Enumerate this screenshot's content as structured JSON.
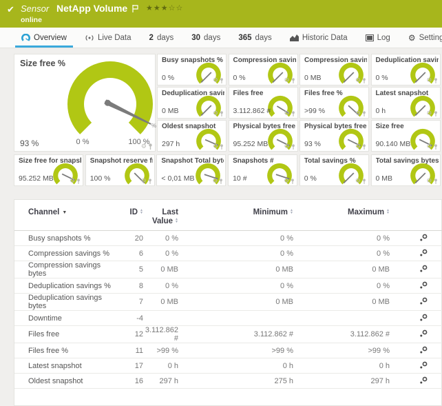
{
  "colors": {
    "brand_green": "#a7b61c",
    "gauge_green": "#b1c714",
    "tab_active_blue": "#3aa9dc"
  },
  "titlebar": {
    "check_glyph": "✔",
    "kind": "Sensor",
    "name": "NetApp Volume",
    "status": "online",
    "stars_filled": "★★★",
    "stars_empty": "☆☆"
  },
  "tabs": [
    {
      "prefix": "",
      "label": "Overview",
      "icon": "gauge-icon"
    },
    {
      "prefix": "",
      "label": "Live Data",
      "icon": "live-icon"
    },
    {
      "prefix": "2",
      "label": "days",
      "icon": ""
    },
    {
      "prefix": "30",
      "label": "days",
      "icon": ""
    },
    {
      "prefix": "365",
      "label": "days",
      "icon": ""
    },
    {
      "prefix": "",
      "label": "Historic Data",
      "icon": "chart-icon"
    },
    {
      "prefix": "",
      "label": "Log",
      "icon": "log-icon"
    },
    {
      "prefix": "",
      "label": "Settings",
      "icon": "gear-icon",
      "gear_glyph": "⚙"
    }
  ],
  "main_gauge": {
    "title": "Size free %",
    "value": "93 %",
    "min_label": "0 %",
    "max_label": "100 %",
    "unit": "%",
    "fraction": 0.93
  },
  "small_gauges": [
    {
      "title": "Busy snapshots %",
      "value": "0 %",
      "fraction": 0
    },
    {
      "title": "Compression savings %",
      "value": "0 %",
      "fraction": 0
    },
    {
      "title": "Compression savings bytes",
      "value": "0 MB",
      "fraction": 0
    },
    {
      "title": "Deduplication savings %",
      "value": "0 %",
      "fraction": 0
    },
    {
      "title": "Deduplication savings bytes",
      "value": "0 MB",
      "fraction": 0
    },
    {
      "title": "Files free",
      "value": "3.112.862 #",
      "fraction": 0.95
    },
    {
      "title": "Files free %",
      "value": ">99 %",
      "fraction": 0.99
    },
    {
      "title": "Latest snapshot",
      "value": "0 h",
      "fraction": 0
    },
    {
      "title": "Oldest snapshot",
      "value": "297 h",
      "fraction": 0.92
    },
    {
      "title": "Physical bytes free",
      "value": "95.252 MB",
      "fraction": 0.93
    },
    {
      "title": "Physical bytes free %",
      "value": "93 %",
      "fraction": 0.93
    },
    {
      "title": "Size free",
      "value": "90.140 MB",
      "fraction": 0.93
    }
  ],
  "bottom_gauges": [
    {
      "title": "Size free for snapshots",
      "value": "95.252 MB",
      "fraction": 0.93
    },
    {
      "title": "Snapshot reserve free %",
      "value": "100 %",
      "fraction": 1
    },
    {
      "title": "Snapshot Total bytes",
      "value": "< 0,01 MB",
      "fraction": 0.9
    },
    {
      "title": "Snapshots #",
      "value": "10 #",
      "fraction": 0.9
    },
    {
      "title": "Total savings %",
      "value": "0 %",
      "fraction": 0
    },
    {
      "title": "Total savings bytes",
      "value": "0 MB",
      "fraction": 0
    }
  ],
  "icons": {
    "gear_glyph": "⚙"
  },
  "table": {
    "columns": {
      "channel": "Channel",
      "id": "ID",
      "last_line1": "Last",
      "last_line2": "Value",
      "minimum": "Minimum",
      "maximum": "Maximum"
    },
    "rows": [
      {
        "channel": "Busy snapshots %",
        "id": "20",
        "last": "0 %",
        "min": "0 %",
        "max": "0 %"
      },
      {
        "channel": "Compression savings %",
        "id": "6",
        "last": "0 %",
        "min": "0 %",
        "max": "0 %"
      },
      {
        "channel": "Compression savings bytes",
        "id": "5",
        "last": "0 MB",
        "min": "0 MB",
        "max": "0 MB"
      },
      {
        "channel": "Deduplication savings %",
        "id": "8",
        "last": "0 %",
        "min": "0 %",
        "max": "0 %"
      },
      {
        "channel": "Deduplication savings bytes",
        "id": "7",
        "last": "0 MB",
        "min": "0 MB",
        "max": "0 MB"
      },
      {
        "channel": "Downtime",
        "id": "-4",
        "last": "",
        "min": "",
        "max": ""
      },
      {
        "channel": "Files free",
        "id": "12",
        "last": "3.112.862 #",
        "min": "3.112.862 #",
        "max": "3.112.862 #"
      },
      {
        "channel": "Files free %",
        "id": "11",
        "last": ">99 %",
        "min": ">99 %",
        "max": ">99 %"
      },
      {
        "channel": "Latest snapshot",
        "id": "17",
        "last": "0 h",
        "min": "0 h",
        "max": "0 h"
      },
      {
        "channel": "Oldest snapshot",
        "id": "16",
        "last": "297 h",
        "min": "275 h",
        "max": "297 h"
      }
    ]
  }
}
